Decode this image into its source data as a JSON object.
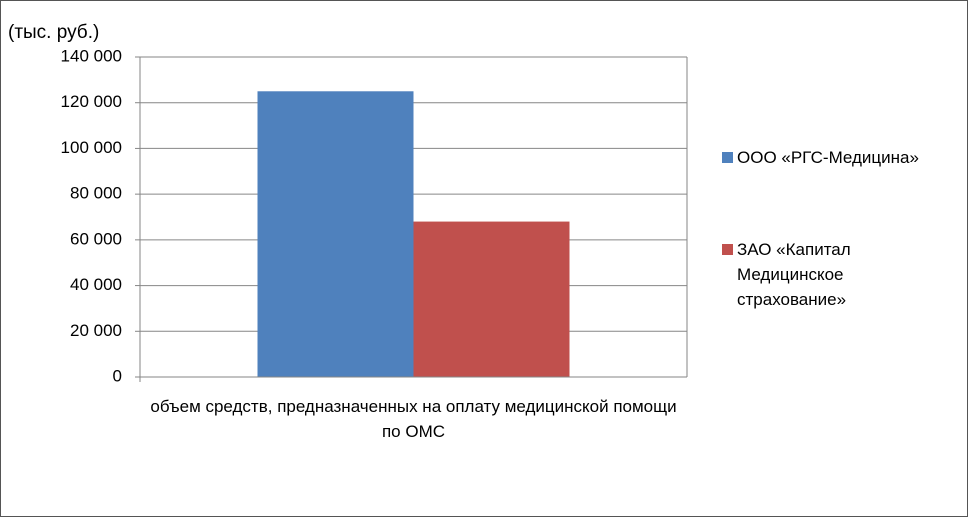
{
  "chart_data": {
    "type": "bar",
    "ylabel": "(тыс. руб.)",
    "categories": [
      "объем средств, предназначенных на оплату медицинской помощи по ОМС"
    ],
    "series": [
      {
        "name": "ООО «РГС-Медицина»",
        "color": "#4f81bd",
        "values": [
          125000
        ]
      },
      {
        "name": "ЗАО «Капитал Медицинское страхование»",
        "color": "#c0504d",
        "values": [
          68000
        ]
      }
    ],
    "ylim": [
      0,
      140000
    ],
    "yticks": [
      0,
      {
        "value": 20000,
        "label": "20 000"
      },
      {
        "value": 40000,
        "label": "40 000"
      },
      {
        "value": 60000,
        "label": "60 000"
      },
      {
        "value": 80000,
        "label": "80 000"
      },
      {
        "value": 100000,
        "label": "100 000"
      },
      {
        "value": 120000,
        "label": "120 000"
      },
      {
        "value": 140000,
        "label": "140 000"
      }
    ],
    "grid": true,
    "legend": "right"
  }
}
